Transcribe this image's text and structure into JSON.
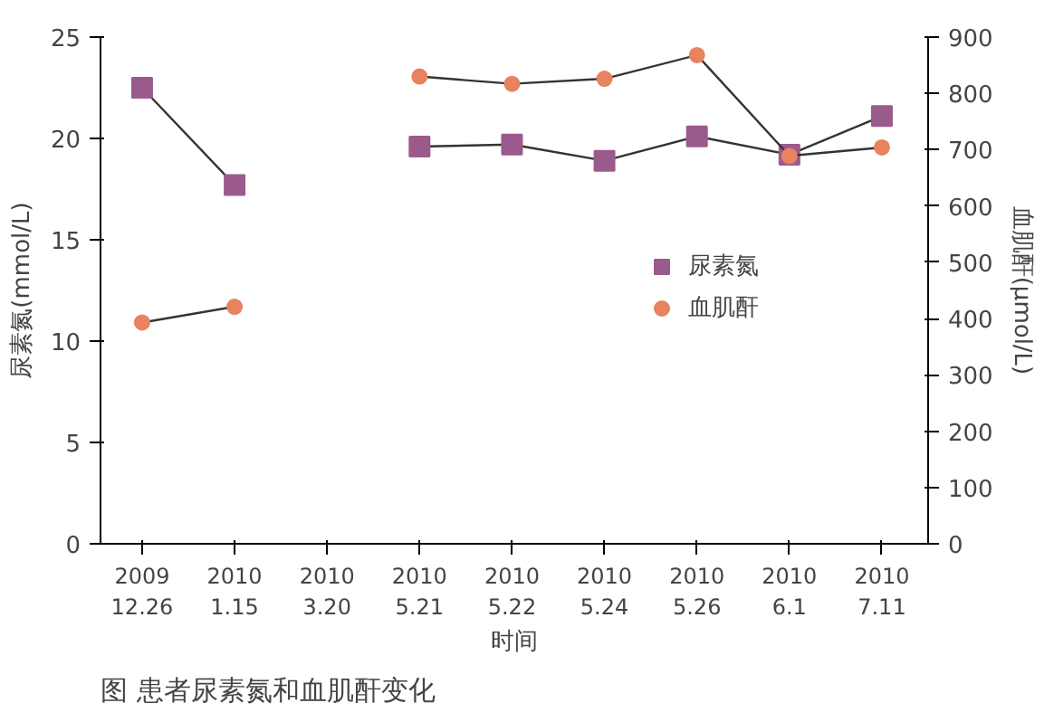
{
  "chart_data": {
    "type": "line",
    "title": "图  患者尿素氮和血肌酐变化",
    "xlabel": "时间",
    "ylabel": "尿素氮(mmol/L)",
    "y2label": "血肌酐(μmol/L)",
    "categories": [
      "2009\n12.26",
      "2010\n1.15",
      "2010\n3.20",
      "2010\n5.21",
      "2010\n5.22",
      "2010\n5.24",
      "2010\n5.26",
      "2010\n6.1",
      "2010\n7.11"
    ],
    "series": [
      {
        "name": "尿素氮",
        "color": "#9b5a8c",
        "marker": "square",
        "values": [
          22.5,
          17.7,
          null,
          19.6,
          19.7,
          18.9,
          20.1,
          19.2,
          21.1
        ]
      },
      {
        "name": "血肌酐",
        "color": "#e8825f",
        "marker": "circle",
        "axis": "y2",
        "values": [
          393,
          421,
          null,
          830,
          817,
          826,
          868,
          689,
          704
        ]
      }
    ],
    "ylim": [
      0,
      25
    ],
    "yticks": [
      0,
      5,
      10,
      15,
      20,
      25
    ],
    "y2lim": [
      0,
      900
    ],
    "y2ticks": [
      0,
      100,
      200,
      300,
      400,
      500,
      600,
      700,
      800,
      900
    ],
    "grid": false,
    "legend": "right"
  }
}
